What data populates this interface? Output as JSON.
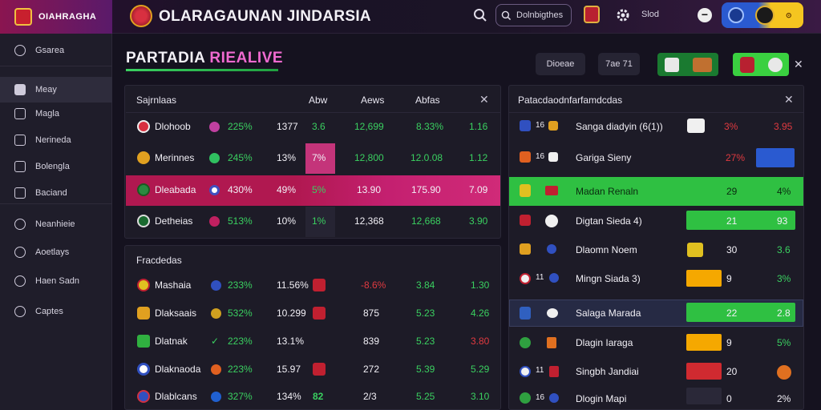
{
  "app": {
    "brand_name": "OIAHRAGHA",
    "brand_sub": "",
    "title": "OLARAGAUNAN JINDARSIA"
  },
  "topbar": {
    "search_value": "Dolnbigthes",
    "label": "Slod"
  },
  "sidebar": {
    "items": [
      {
        "label": "Gsarea",
        "icon": "search-icon"
      },
      {
        "label": "Meay",
        "icon": "home-icon"
      },
      {
        "label": "Magla",
        "icon": "square-icon"
      },
      {
        "label": "Nerineda",
        "icon": "lock-icon"
      },
      {
        "label": "Bolengla",
        "icon": "square-icon"
      },
      {
        "label": "Baciand",
        "icon": "square-icon"
      },
      {
        "label": "Neanhieie",
        "icon": "user-icon"
      },
      {
        "label": "Aoetlays",
        "icon": "shield-icon"
      },
      {
        "label": "Haen Sadn",
        "icon": "user-icon"
      },
      {
        "label": "Captes",
        "icon": "circle-icon"
      }
    ]
  },
  "page": {
    "title_part1": "PARTADIA",
    "title_part2": "RIEALIVE",
    "btn1": "Dioeae",
    "btn2": "7ae 71"
  },
  "table1": {
    "title": "Sajrnlaas",
    "col1": "Abw",
    "col2": "Aews",
    "col3": "Abfas",
    "rows": [
      {
        "team": "Dlohoob",
        "pct": "225%",
        "a": "1377",
        "b": "3.6",
        "c": "12,699",
        "d": "8.33%",
        "e": "1.16"
      },
      {
        "team": "Merinnes",
        "pct": "245%",
        "a": "13%",
        "b": "7%",
        "c": "12,800",
        "d": "12.0.08",
        "e": "1.12"
      },
      {
        "team": "Dleabada",
        "pct": "430%",
        "a": "49%",
        "b": "5%",
        "c": "13.90",
        "d": "175.90",
        "e": "7.09"
      },
      {
        "team": "Detheias",
        "pct": "513%",
        "a": "10%",
        "b": "1%",
        "c": "12,368",
        "d": "12,668",
        "e": "3.90"
      }
    ]
  },
  "table2": {
    "title": "Fracdedas",
    "rows": [
      {
        "team": "Mashaia",
        "pct": "233%",
        "a": "11.56%",
        "b": "-8.6%",
        "c": "3.84",
        "d": "1.30"
      },
      {
        "team": "Dlaksaais",
        "pct": "532%",
        "a": "10.299",
        "b": "875",
        "c": "5.23",
        "d": "4.26"
      },
      {
        "team": "Dlatnak",
        "pct": "223%",
        "a": "13.1%",
        "b": "839",
        "c": "5.23",
        "d": "3.80"
      },
      {
        "team": "Dlaknaoda",
        "pct": "223%",
        "a": "15.97",
        "b": "272",
        "c": "5.39",
        "d": "5.29"
      },
      {
        "team": "Dlablcans",
        "pct": "327%",
        "a": "134%",
        "a2": "82",
        "b": "2/3",
        "c": "5.25",
        "d": "3.10"
      }
    ]
  },
  "right_panel": {
    "title": "Patacdaodnfarfamdcdas",
    "rows": [
      {
        "n": "16",
        "name": "Sanga diadyin (6(1))",
        "v1": "3%",
        "v2": "3.95"
      },
      {
        "n": "16",
        "name": "Gariga Sieny",
        "v1": "27%",
        "v2": ""
      },
      {
        "n": "",
        "name": "Madan Renaln",
        "v1": "29",
        "v2": "4%"
      },
      {
        "n": "",
        "name": "Digtan Sieda 4)",
        "v1": "21",
        "v2": "93"
      },
      {
        "n": "",
        "name": "Dlaomn Noem",
        "v1": "30",
        "v2": "3.6"
      },
      {
        "n": "11",
        "name": "Mingn Siada 3)",
        "v1": "9",
        "v2": "3%"
      },
      {
        "n": "",
        "name": "Salaga Marada",
        "v1": "22",
        "v2": "2.8"
      },
      {
        "n": "",
        "name": "Dlagin Iaraga",
        "v1": "9",
        "v2": "5%"
      },
      {
        "n": "11",
        "name": "Singbh Jandiai",
        "v1": "20",
        "v2": ""
      },
      {
        "n": "16",
        "name": "Dlogin Mapi",
        "v1": "0",
        "v2": "2%"
      }
    ]
  },
  "colors": {
    "accent_pink": "#c4347a",
    "green": "#2fc042",
    "red": "#e03a40",
    "yellow": "#f5a800",
    "blue": "#2a5ad0"
  }
}
